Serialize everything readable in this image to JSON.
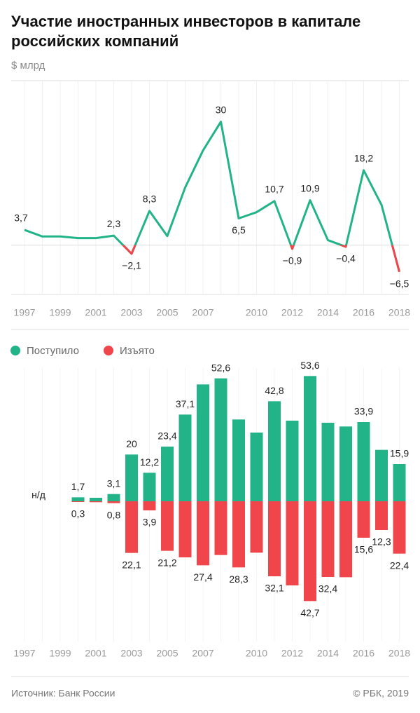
{
  "title": "Участие иностранных инвесторов в капитале",
  "title_line2": "российских компаний",
  "subtitle": "$ млрд",
  "chart_data": [
    {
      "type": "line",
      "categories": [
        "1997",
        null,
        "1999",
        null,
        "2001",
        null,
        "2003",
        null,
        "2005",
        null,
        "2007",
        null,
        null,
        "2010",
        null,
        "2012",
        null,
        "2014",
        null,
        "2016",
        null,
        "2018"
      ],
      "values": [
        3.7,
        2.1,
        2.1,
        1.7,
        1.7,
        2.3,
        -2.1,
        8.3,
        2.2,
        14,
        23,
        30,
        6.5,
        8,
        10.7,
        -0.9,
        10.9,
        1.2,
        -0.4,
        18.2,
        9.8,
        -6.5
      ],
      "value_labels": [
        "3,7",
        null,
        null,
        null,
        null,
        "2,3",
        "−2,1",
        "8,3",
        null,
        null,
        null,
        "30",
        "6,5",
        null,
        "10,7",
        "−0,9",
        "10,9",
        null,
        "−0,4",
        "18,2",
        null,
        "−6,5"
      ],
      "color": "#22b389",
      "negative_color": "#f0464b",
      "ylim": [
        -12,
        40
      ],
      "zero_line": true,
      "grid": true
    },
    {
      "type": "bar",
      "categories": [
        "1997",
        null,
        "1999",
        null,
        "2001",
        null,
        "2003",
        null,
        "2005",
        null,
        "2007",
        null,
        null,
        "2010",
        null,
        "2012",
        null,
        "2014",
        null,
        "2016",
        null,
        "2018"
      ],
      "annotation": "н/д",
      "series": [
        {
          "name": "Поступило",
          "color": "#22b389",
          "values": [
            null,
            null,
            null,
            1.7,
            1.5,
            3.1,
            20,
            12.2,
            23.4,
            37.1,
            50,
            52.6,
            35,
            29.4,
            42.8,
            34.5,
            53.6,
            33.6,
            32,
            33.9,
            22,
            15.9
          ],
          "value_labels": [
            null,
            null,
            null,
            "1,7",
            null,
            "3,1",
            "20",
            "12,2",
            "23,4",
            "37,1",
            null,
            "52,6",
            null,
            null,
            "42,8",
            null,
            "53,6",
            null,
            null,
            "33,9",
            null,
            "15,9"
          ]
        },
        {
          "name": "Изъято",
          "color": "#f0464b",
          "values": [
            null,
            null,
            null,
            -0.3,
            -0.4,
            -0.8,
            -22.1,
            -3.9,
            -21.2,
            -24,
            -27.4,
            -23,
            -28.3,
            -22,
            -32.1,
            -36,
            -42.7,
            -32.4,
            -32.5,
            -15.6,
            -12.3,
            -22.4
          ],
          "value_labels": [
            null,
            null,
            null,
            "0,3",
            null,
            "0,8",
            "22,1",
            "3,9",
            "21,2",
            null,
            "27,4",
            null,
            "28,3",
            null,
            "32,1",
            null,
            "42,7",
            "32,4",
            null,
            "15,6",
            "12,3",
            "22,4"
          ]
        }
      ],
      "ylim": [
        -57,
        57
      ],
      "grid": true
    }
  ],
  "footer": {
    "source": "Источник: Банк России",
    "copyright": "© РБК, 2019"
  }
}
